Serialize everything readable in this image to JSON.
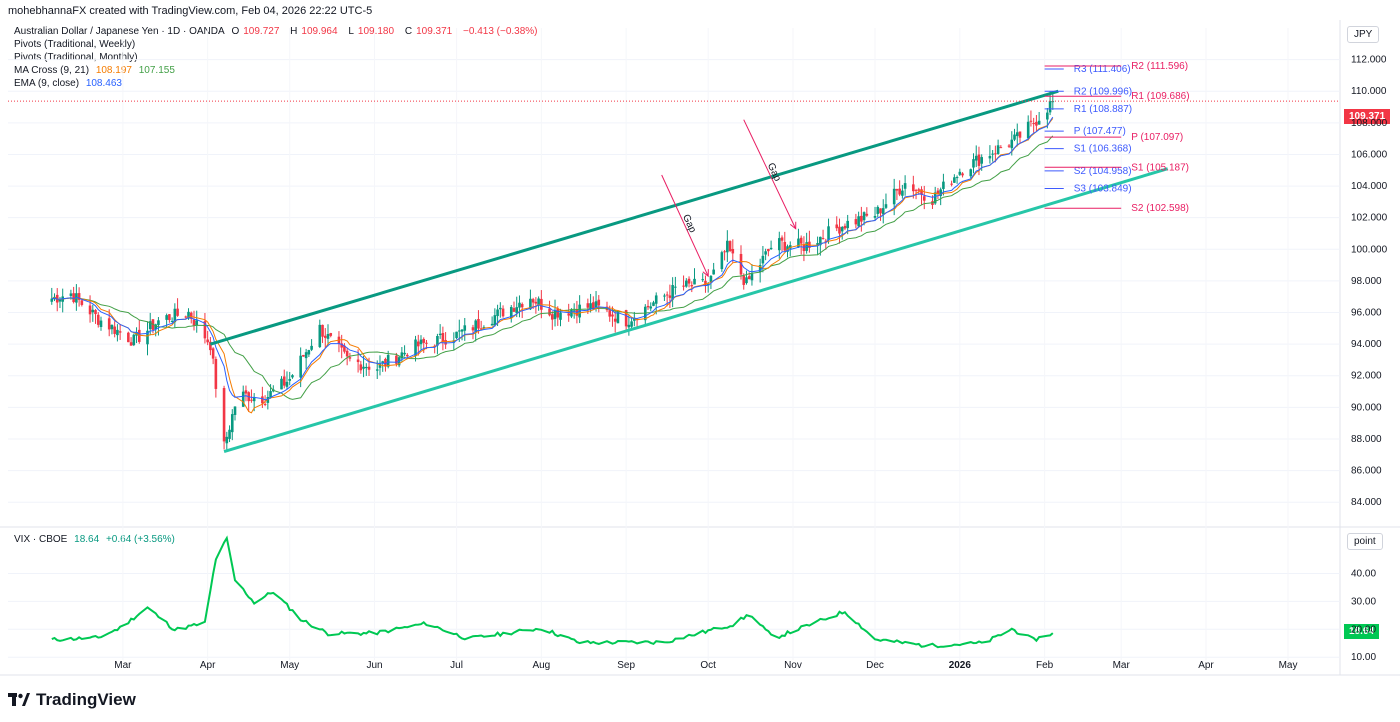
{
  "header": {
    "author_line": "mohebhannaFX created with TradingView.com, Feb 04, 2026 22:22 UTC-5"
  },
  "legend": {
    "symbol_title": "Australian Dollar / Japanese Yen · 1D · OANDA",
    "ohlc": {
      "o_label": "O",
      "o": "109.727",
      "h_label": "H",
      "h": "109.964",
      "l_label": "L",
      "l": "109.180",
      "c_label": "C",
      "c": "109.371",
      "chg": "−0.413 (−0.38%)"
    },
    "pivots_weekly": "Pivots (Traditional, Weekly)",
    "pivots_monthly": "Pivots (Traditional, Monthly)",
    "ma_cross": {
      "label": "MA Cross (9, 21)",
      "v1": "108.197",
      "v2": "107.155"
    },
    "ema": {
      "label": "EMA (9, close)",
      "v": "108.463"
    },
    "vix": {
      "label": "VIX · CBOE",
      "v": "18.64",
      "chg": "+0.64 (+3.56%)"
    }
  },
  "currency_badge": "JPY",
  "vix_unit_badge": "point",
  "last_price_tag": "109.371",
  "vix_last_tag": "18.64",
  "footer_brand": "TradingView",
  "colors": {
    "up": "#089981",
    "down": "#f23645",
    "ma_fast": "#f57c00",
    "ma_slow": "#43a047",
    "ema": "#2962ff",
    "channel_top": "#089981",
    "channel_bottom": "#26c6a8",
    "weekly_pivot": "#3d5afe",
    "monthly_pivot": "#e91e63",
    "vix": "#00c853",
    "annot": "#e91e63"
  },
  "chart_data": {
    "type": "candlestick",
    "title": "Australian Dollar / Japanese Yen · 1D · OANDA",
    "y_axis": {
      "ticks": [
        84,
        86,
        88,
        90,
        92,
        94,
        96,
        98,
        100,
        102,
        104,
        106,
        108,
        110,
        112
      ],
      "tick_labels": [
        "84.000",
        "86.000",
        "88.000",
        "90.000",
        "92.000",
        "94.000",
        "96.000",
        "98.000",
        "100.000",
        "102.000",
        "104.000",
        "106.000",
        "108.000",
        "110.000",
        "112.000"
      ],
      "ylim": [
        83.0,
        114.0
      ]
    },
    "x_axis": {
      "labels": [
        "Mar",
        "Apr",
        "May",
        "Jun",
        "Jul",
        "Aug",
        "Sep",
        "Oct",
        "Nov",
        "Dec",
        "2026",
        "Feb",
        "Mar",
        "Apr",
        "May"
      ]
    },
    "price_anchors": [
      [
        "2025-02-01",
        96.8
      ],
      [
        "2025-02-10",
        97.2
      ],
      [
        "2025-02-20",
        95.6
      ],
      [
        "2025-03-05",
        94.2
      ],
      [
        "2025-03-15",
        95.6
      ],
      [
        "2025-03-25",
        96.0
      ],
      [
        "2025-04-02",
        94.0
      ],
      [
        "2025-04-07",
        87.5
      ],
      [
        "2025-04-12",
        90.8
      ],
      [
        "2025-04-22",
        90.6
      ],
      [
        "2025-05-01",
        91.8
      ],
      [
        "2025-05-12",
        95.0
      ],
      [
        "2025-05-22",
        93.0
      ],
      [
        "2025-06-02",
        92.5
      ],
      [
        "2025-06-15",
        93.8
      ],
      [
        "2025-07-01",
        94.6
      ],
      [
        "2025-07-15",
        95.8
      ],
      [
        "2025-07-28",
        97.0
      ],
      [
        "2025-08-05",
        96.0
      ],
      [
        "2025-08-20",
        96.4
      ],
      [
        "2025-09-01",
        95.5
      ],
      [
        "2025-09-20",
        97.6
      ],
      [
        "2025-10-01",
        97.8
      ],
      [
        "2025-10-08",
        100.1
      ],
      [
        "2025-10-15",
        97.8
      ],
      [
        "2025-10-25",
        100.4
      ],
      [
        "2025-11-05",
        100.2
      ],
      [
        "2025-11-20",
        101.6
      ],
      [
        "2025-12-01",
        102.2
      ],
      [
        "2025-12-12",
        104.2
      ],
      [
        "2025-12-22",
        103.2
      ],
      [
        "2026-01-01",
        105.0
      ],
      [
        "2026-01-12",
        106.1
      ],
      [
        "2026-01-22",
        107.0
      ],
      [
        "2026-01-28",
        108.0
      ],
      [
        "2026-02-04",
        109.371
      ]
    ],
    "ma_fast_value": 108.197,
    "ma_slow_value": 107.155,
    "ema_value": 108.463,
    "channel": {
      "upper": [
        [
          "2025-04-02",
          94.0
        ],
        [
          "2026-02-06",
          110.0
        ]
      ],
      "lower": [
        [
          "2025-04-07",
          87.2
        ],
        [
          "2026-03-18",
          105.1
        ]
      ]
    },
    "weekly_pivots": [
      {
        "label": "R3",
        "value": 111.406
      },
      {
        "label": "R2",
        "value": 109.996
      },
      {
        "label": "R1",
        "value": 108.887
      },
      {
        "label": "P",
        "value": 107.477
      },
      {
        "label": "S1",
        "value": 106.368
      },
      {
        "label": "S2",
        "value": 104.958
      },
      {
        "label": "S3",
        "value": 103.849
      }
    ],
    "monthly_pivots": [
      {
        "label": "R2",
        "value": 111.596
      },
      {
        "label": "R1",
        "value": 109.686
      },
      {
        "label": "P",
        "value": 107.097
      },
      {
        "label": "S1",
        "value": 105.187
      },
      {
        "label": "S2",
        "value": 102.598
      }
    ],
    "annotations": [
      {
        "text": "Gap",
        "from": [
          "2025-09-14",
          104.7
        ],
        "to": [
          "2025-10-01",
          98.3
        ]
      },
      {
        "text": "Gap",
        "from": [
          "2025-10-14",
          108.2
        ],
        "to": [
          "2025-11-02",
          101.3
        ]
      }
    ],
    "vix": {
      "y_ticks": [
        10,
        20,
        30,
        40
      ],
      "y_tick_labels": [
        "10.00",
        "20.00",
        "30.00",
        "40.00"
      ],
      "ylim": [
        9,
        52
      ],
      "anchors": [
        [
          "2025-02-01",
          16.2
        ],
        [
          "2025-02-20",
          17.0
        ],
        [
          "2025-02-28",
          20.5
        ],
        [
          "2025-03-10",
          27.8
        ],
        [
          "2025-03-20",
          19.8
        ],
        [
          "2025-03-31",
          22.3
        ],
        [
          "2025-04-04",
          45.3
        ],
        [
          "2025-04-08",
          52.3
        ],
        [
          "2025-04-11",
          37.6
        ],
        [
          "2025-04-18",
          29.6
        ],
        [
          "2025-04-25",
          33.5
        ],
        [
          "2025-05-05",
          23.6
        ],
        [
          "2025-05-15",
          18.5
        ],
        [
          "2025-06-01",
          18.6
        ],
        [
          "2025-06-20",
          22.1
        ],
        [
          "2025-07-05",
          16.6
        ],
        [
          "2025-08-01",
          20.4
        ],
        [
          "2025-08-15",
          15.2
        ],
        [
          "2025-09-15",
          15.4
        ],
        [
          "2025-10-10",
          21.7
        ],
        [
          "2025-10-16",
          25.3
        ],
        [
          "2025-10-25",
          16.8
        ],
        [
          "2025-11-20",
          26.4
        ],
        [
          "2025-12-01",
          16.4
        ],
        [
          "2025-12-20",
          14.1
        ],
        [
          "2026-01-10",
          15.1
        ],
        [
          "2026-01-20",
          20.1
        ],
        [
          "2026-01-28",
          16.2
        ],
        [
          "2026-02-04",
          18.64
        ]
      ]
    }
  }
}
